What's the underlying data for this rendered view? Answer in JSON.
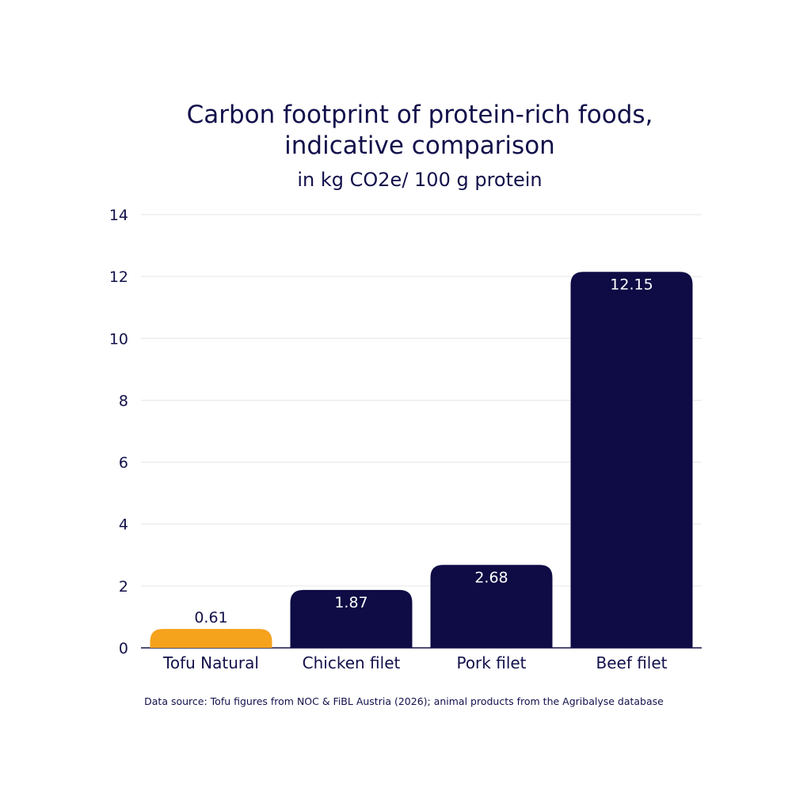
{
  "chart_data": {
    "type": "bar",
    "title_lines": [
      "Carbon footprint of protein-rich foods,",
      "indicative comparison"
    ],
    "subtitle": "in kg CO2e/ 100 g protein",
    "categories": [
      "Tofu Natural",
      "Chicken filet",
      "Pork filet",
      "Beef filet"
    ],
    "values": [
      0.61,
      1.87,
      2.68,
      12.15
    ],
    "value_labels": [
      "0.61",
      "1.87",
      "2.68",
      "12.15"
    ],
    "ylim": [
      0,
      14
    ],
    "yticks": [
      "0",
      "2",
      "4",
      "6",
      "8",
      "10",
      "12",
      "14"
    ],
    "grid": true,
    "colors": {
      "highlight": "#f5a21c",
      "default": "#0e0b45",
      "text_dark": "#12104a",
      "text_light": "#ffffff"
    },
    "highlight_index": 0
  },
  "source": "Data source: Tofu figures from NOC & FiBL Austria (2026); animal products from the Agribalyse database"
}
